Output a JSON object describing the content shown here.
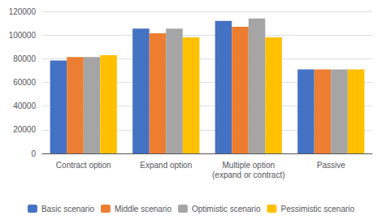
{
  "chart_data": {
    "type": "bar",
    "categories": [
      "Contract option",
      "Expand option",
      "Multiple option\n(expand or contract)",
      "Passive"
    ],
    "series": [
      {
        "name": "Basic scenario",
        "color": "#4472C4",
        "values": [
          78500,
          105500,
          112000,
          71000
        ]
      },
      {
        "name": "Middle scenario",
        "color": "#ED7D31",
        "values": [
          81500,
          101500,
          107000,
          71000
        ]
      },
      {
        "name": "Optimistic scenario",
        "color": "#A5A5A5",
        "values": [
          81500,
          105500,
          114000,
          71000
        ]
      },
      {
        "name": "Pessimistic scenario",
        "color": "#FFC000",
        "values": [
          83000,
          98000,
          98000,
          71000
        ]
      }
    ],
    "ylim": [
      0,
      120000
    ],
    "yticks": [
      0,
      20000,
      40000,
      60000,
      80000,
      100000,
      120000
    ],
    "grid": true,
    "legend": "bottom"
  }
}
